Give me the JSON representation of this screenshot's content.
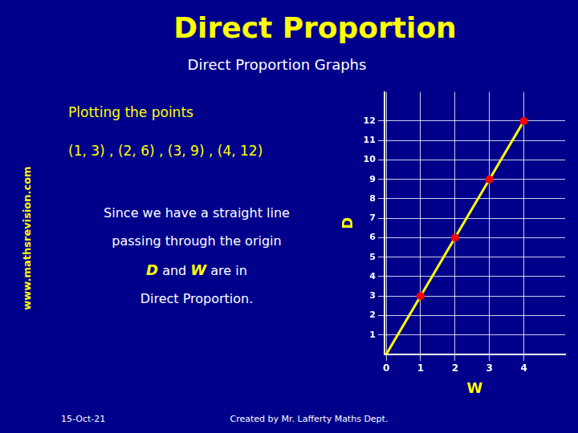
{
  "chart_data": {
    "type": "scatter",
    "title": "Direct Proportion",
    "subtitle": "Direct Proportion Graphs",
    "x_label": "W",
    "y_label": "D",
    "series": [
      {
        "type": "line",
        "color": "#FFFF00",
        "x": [
          0,
          4.05
        ],
        "values": [
          0,
          12.15
        ]
      },
      {
        "type": "scatter",
        "color": "#FF0000",
        "x": [
          1,
          2,
          3,
          4
        ],
        "values": [
          3,
          6,
          9,
          12
        ]
      }
    ],
    "xlim": [
      -0.05,
      5.2
    ],
    "xticks": [
      0,
      1,
      2,
      3,
      4
    ],
    "ylim": [
      0,
      13.5
    ],
    "yticks": [
      1,
      2,
      3,
      4,
      5,
      6,
      7,
      8,
      9,
      10,
      11,
      12
    ],
    "grid": true,
    "annotations": [
      "www.mathsrevision.com",
      "Plotting the points",
      "(1, 3) , (2, 6) , (3, 9) , (4, 12)",
      "Since we have a straight line",
      "passing through the origin",
      "D and W are in",
      "Direct Proportion.",
      "15-Oct-21",
      "Created by Mr. Lafferty Maths Dept."
    ]
  }
}
